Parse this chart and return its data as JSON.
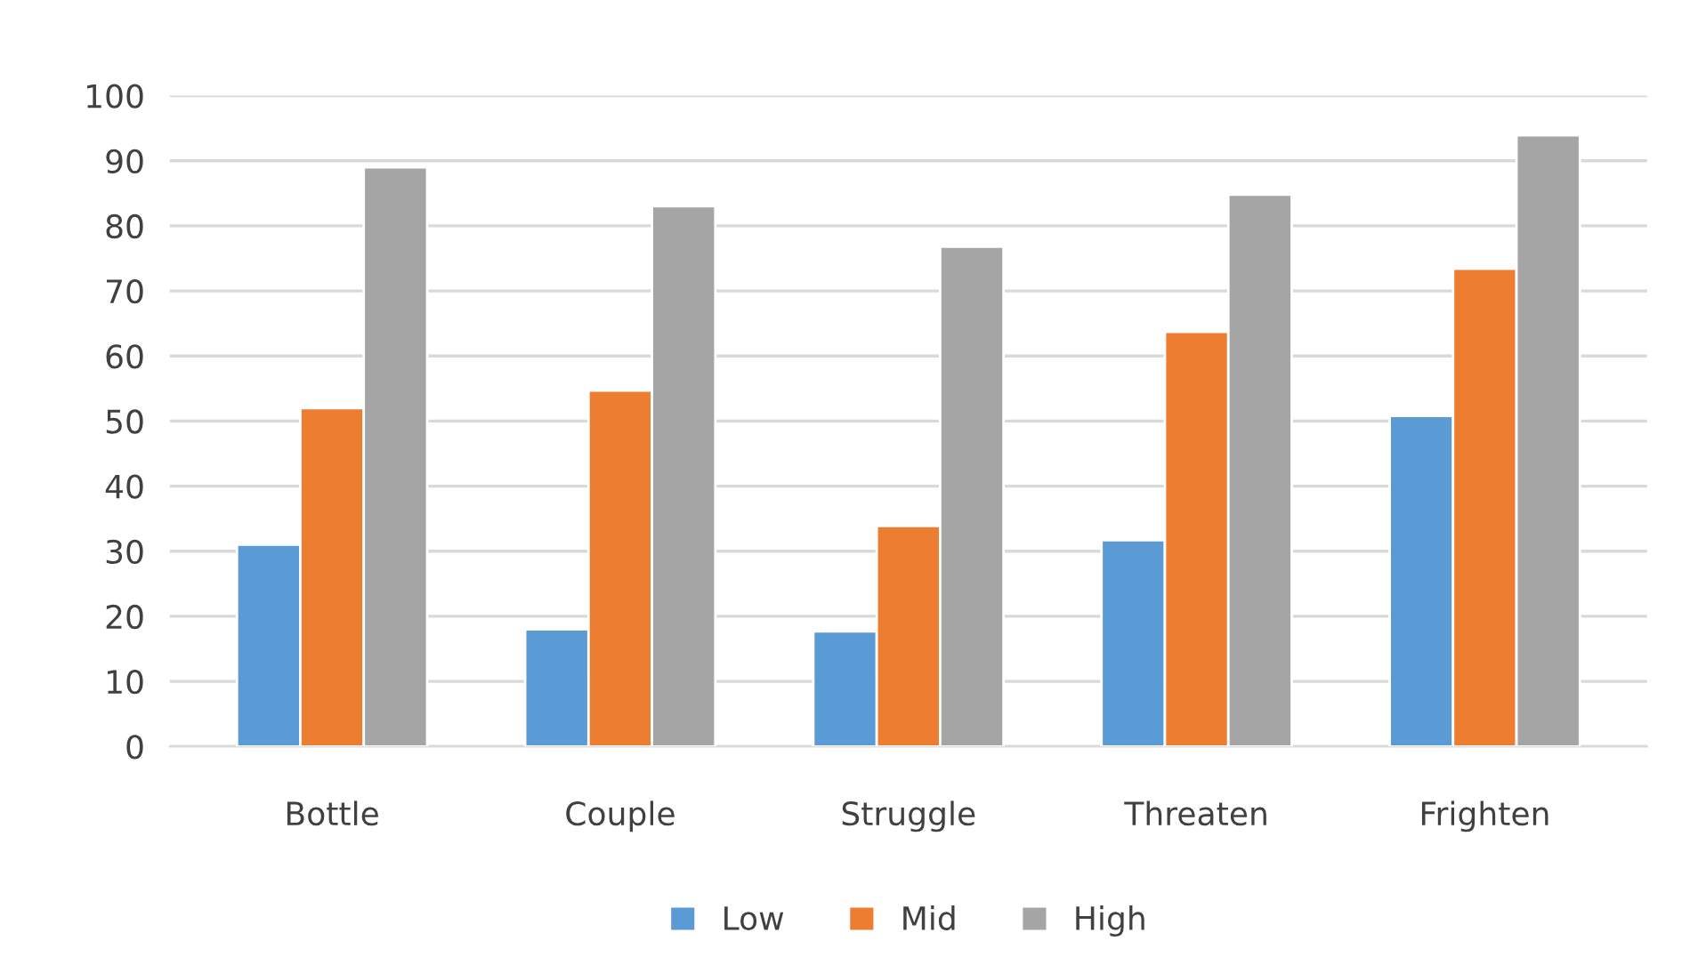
{
  "chart_data": {
    "type": "bar",
    "categories": [
      "Bottle",
      "Couple",
      "Struggle",
      "Threaten",
      "Frighten"
    ],
    "series": [
      {
        "name": "Low",
        "color": "#5b9bd5",
        "values": [
          31,
          18,
          17.7,
          31.7,
          50.8
        ]
      },
      {
        "name": "Mid",
        "color": "#ed7d31",
        "values": [
          52,
          54.7,
          33.9,
          63.7,
          73.4
        ]
      },
      {
        "name": "High",
        "color": "#a5a5a5",
        "values": [
          89,
          83,
          76.8,
          84.8,
          93.9
        ]
      }
    ],
    "ylim": [
      0,
      100
    ],
    "yticks": [
      0,
      10,
      20,
      30,
      40,
      50,
      60,
      70,
      80,
      90,
      100
    ],
    "grid": "y",
    "legend": "bottom"
  }
}
